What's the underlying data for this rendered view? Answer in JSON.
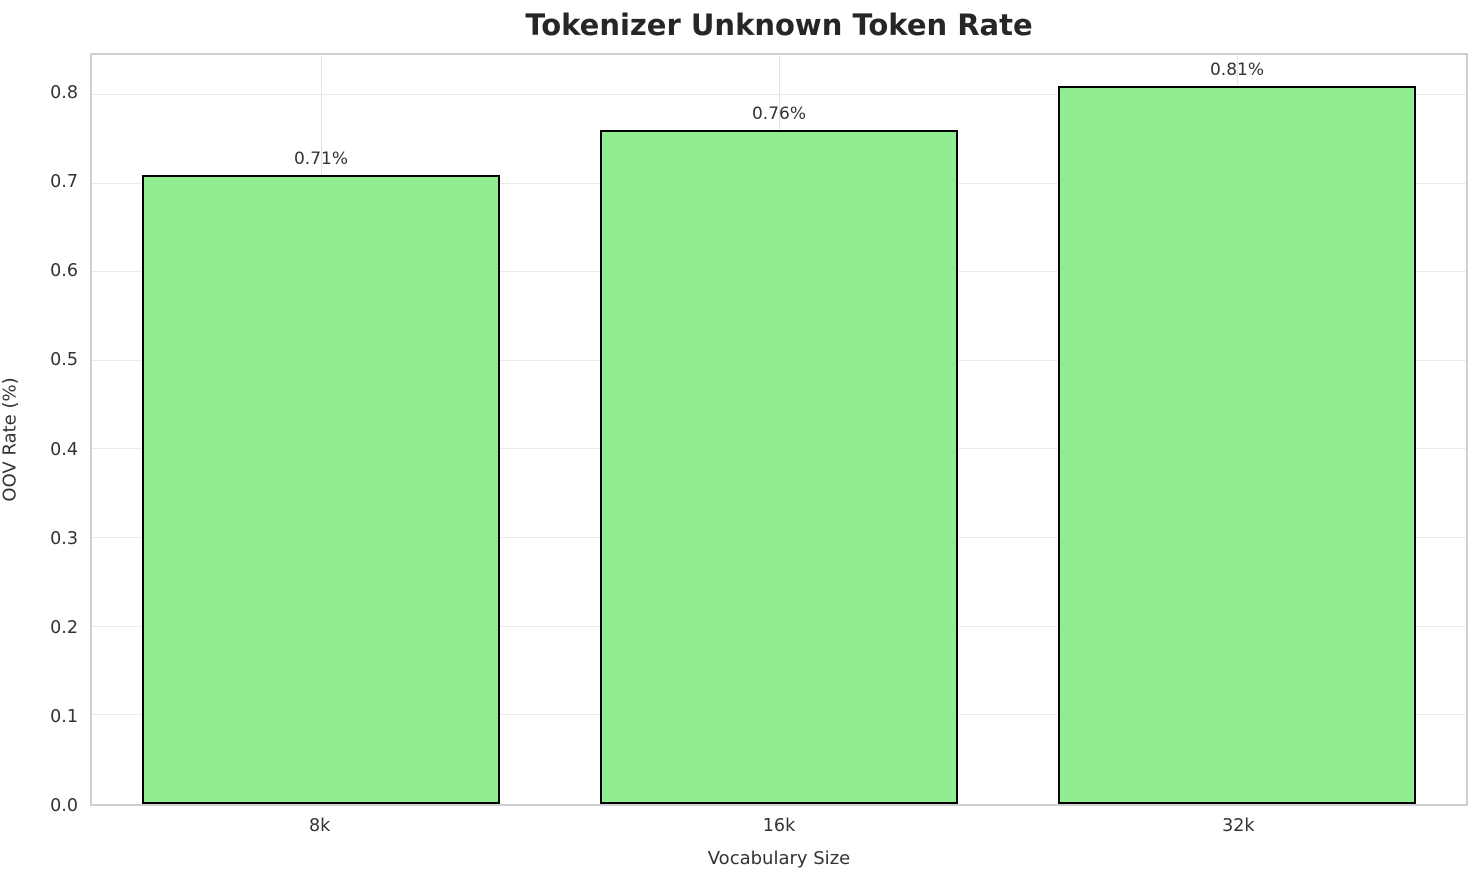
{
  "chart_data": {
    "type": "bar",
    "title": "Tokenizer Unknown Token Rate",
    "xlabel": "Vocabulary Size",
    "ylabel": "OOV Rate (%)",
    "categories": [
      "8k",
      "16k",
      "32k"
    ],
    "values": [
      0.71,
      0.76,
      0.81
    ],
    "value_labels": [
      "0.71%",
      "0.76%",
      "0.81%"
    ],
    "ylim": [
      0,
      0.845
    ],
    "yticks": [
      0.0,
      0.1,
      0.2,
      0.3,
      0.4,
      0.5,
      0.6,
      0.7,
      0.8
    ],
    "ytick_labels": [
      "0.0",
      "0.1",
      "0.2",
      "0.3",
      "0.4",
      "0.5",
      "0.6",
      "0.7",
      "0.8"
    ],
    "grid": true,
    "legend": "none",
    "bar_color": "#90EE90",
    "bar_edge_color": "#000000",
    "bar_width_fraction": 0.78
  }
}
